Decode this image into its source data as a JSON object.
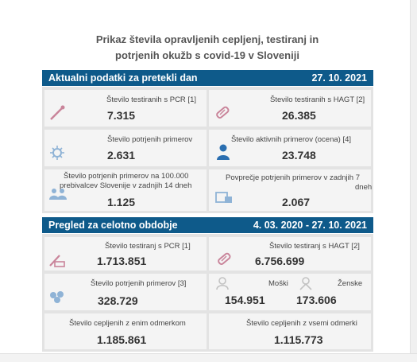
{
  "title": {
    "line1": "Prikaz števila opravljenih cepljenj, testiranj in",
    "line2": "potrjenih okužb s covid-19 v Sloveniji"
  },
  "current": {
    "heading": "Aktualni podatki za pretekli dan",
    "date": "27. 10. 2021",
    "cards": [
      {
        "label": "Število testiranih s PCR [1]",
        "value": "7.315",
        "icon": "pcr-swab-icon"
      },
      {
        "label": "Število testiranih s HAGT [2]",
        "value": "26.385",
        "icon": "hagt-test-icon"
      },
      {
        "label": "Število potrjenih primerov",
        "value": "2.631",
        "icon": "virus-icon"
      },
      {
        "label": "Število aktivnih primerov (ocena) [4]",
        "value": "23.748",
        "icon": "person-icon"
      },
      {
        "label1": "Število potrjenih primerov na 100.000",
        "label2": "prebivalcev Slovenije v zadnjih 14 dneh",
        "value": "1.125",
        "icon": "group-icon"
      },
      {
        "label1": "Povprečje potrjenih primerov v zadnjih 7",
        "label2": "dneh",
        "value": "2.067",
        "icon": "calendar-chart-icon"
      }
    ]
  },
  "overall": {
    "heading": "Pregled za celotno obdobje",
    "date_range": "4. 03. 2020  -  27. 10. 2021",
    "cards": [
      {
        "label": "Število testiranj s PCR [1]",
        "value": "1.713.851",
        "icon": "pcr-swab-icon"
      },
      {
        "label": "Število testiranj s HAGT [2]",
        "value": "6.756.699",
        "icon": "hagt-test-icon"
      },
      {
        "label": "Število potrjenih primerov [3]",
        "value": "328.729",
        "icon": "virus-group-icon"
      },
      {
        "label": "Število cepljenih z enim odmerkom",
        "value": "1.185.861"
      },
      {
        "label": "Število cepljenih z vsemi odmerki",
        "value": "1.115.773"
      }
    ],
    "gender": {
      "male_label": "Moški",
      "male_value": "154.951",
      "female_label": "Ženske",
      "female_value": "173.606"
    }
  }
}
